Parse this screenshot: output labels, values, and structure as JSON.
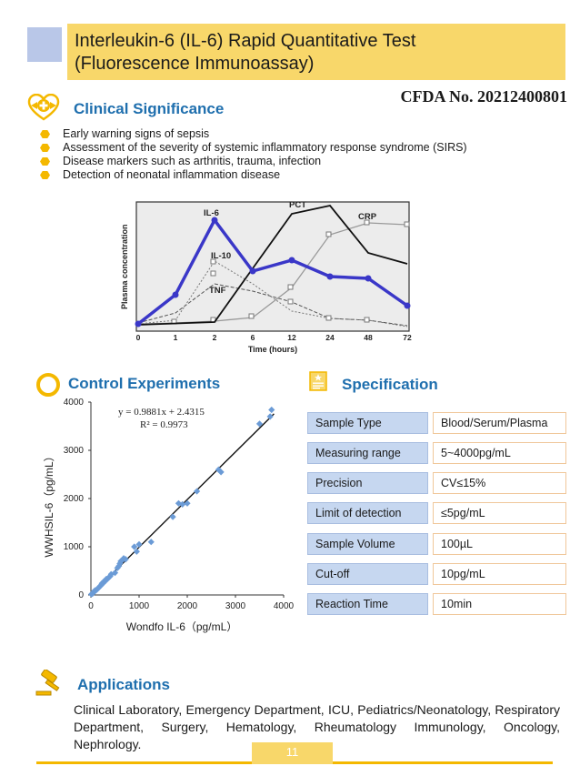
{
  "header": {
    "title_line1": "Interleukin-6 (IL-6) Rapid Quantitative Test",
    "title_line2": "(Fluorescence Immunoassay)",
    "cfda": "CFDA No. 20212400801"
  },
  "clinical": {
    "title": "Clinical Significance",
    "items": [
      "Early warning signs of sepsis",
      "Assessment of the severity of systemic inflammatory response syndrome (SIRS)",
      "Disease markers such as arthritis, trauma, infection",
      "Detection of neonatal inflammation disease"
    ]
  },
  "plasma_chart": {
    "ylabel": "Plasma concentration",
    "xlabel": "Time (hours)",
    "x_ticks": [
      "0",
      "1",
      "2",
      "6",
      "12",
      "24",
      "48",
      "72"
    ],
    "labels": {
      "il6": "IL-6",
      "il10": "IL-10",
      "tnf": "TNF",
      "pct": "PCT",
      "crp": "CRP"
    }
  },
  "control": {
    "title": "Control Experiments"
  },
  "chart_data": {
    "type": "scatter",
    "title": "",
    "xlabel": "Wondfo IL-6（pg/mL）",
    "ylabel": "WWHSIL-6（pg/mL）",
    "xlim": [
      0,
      4000
    ],
    "ylim": [
      0,
      4000
    ],
    "x_ticks": [
      "0",
      "1000",
      "2000",
      "3000",
      "4000"
    ],
    "y_ticks": [
      "0",
      "1000",
      "2000",
      "3000",
      "4000"
    ],
    "equation": "y = 0.9881x + 2.4315",
    "r2": "R² = 0.9973",
    "fit": {
      "slope": 0.9881,
      "intercept": 2.4315
    },
    "points": [
      [
        10,
        15
      ],
      [
        30,
        25
      ],
      [
        50,
        45
      ],
      [
        70,
        80
      ],
      [
        90,
        95
      ],
      [
        110,
        100
      ],
      [
        130,
        120
      ],
      [
        150,
        140
      ],
      [
        170,
        160
      ],
      [
        190,
        185
      ],
      [
        210,
        200
      ],
      [
        230,
        240
      ],
      [
        250,
        240
      ],
      [
        270,
        280
      ],
      [
        300,
        290
      ],
      [
        320,
        330
      ],
      [
        350,
        340
      ],
      [
        380,
        370
      ],
      [
        400,
        390
      ],
      [
        420,
        430
      ],
      [
        500,
        460
      ],
      [
        550,
        560
      ],
      [
        580,
        600
      ],
      [
        600,
        650
      ],
      [
        620,
        700
      ],
      [
        650,
        720
      ],
      [
        680,
        760
      ],
      [
        720,
        740
      ],
      [
        900,
        1000
      ],
      [
        950,
        900
      ],
      [
        1000,
        1050
      ],
      [
        1250,
        1100
      ],
      [
        1700,
        1620
      ],
      [
        1820,
        1900
      ],
      [
        1900,
        1880
      ],
      [
        2000,
        1900
      ],
      [
        2200,
        2150
      ],
      [
        2650,
        2600
      ],
      [
        2700,
        2550
      ],
      [
        3500,
        3550
      ],
      [
        3720,
        3700
      ],
      [
        3750,
        3840
      ]
    ]
  },
  "spec": {
    "title": "Specification",
    "rows": [
      {
        "label": "Sample  Type",
        "value": "Blood/Serum/Plasma"
      },
      {
        "label": "Measuring range",
        "value": "5~4000pg/mL"
      },
      {
        "label": "Precision",
        "value": "CV≤15%"
      },
      {
        "label": "Limit of detection",
        "value": "≤5pg/mL"
      },
      {
        "label": "Sample  Volume",
        "value": "100µL"
      },
      {
        "label": "Cut-off",
        "value": "10pg/mL"
      },
      {
        "label": "Reaction Time",
        "value": "10min"
      }
    ]
  },
  "applications": {
    "title": "Applications",
    "text": "Clinical Laboratory, Emergency Department, ICU, Pediatrics/Neonatology, Respiratory Department, Surgery, Hematology, Rheumatology Immunology, Oncology, Nephrology."
  },
  "footer": {
    "page": "11"
  },
  "colors": {
    "accent": "#f4b800",
    "banner": "#f8d76a",
    "heading": "#1f6fae",
    "il6": "#3a37c8",
    "scatter": "#6b9bd6"
  },
  "icons": [
    "heart-plus-icon",
    "hexagon-bullet-icon",
    "ring-icon",
    "document-icon",
    "gavel-icon"
  ]
}
